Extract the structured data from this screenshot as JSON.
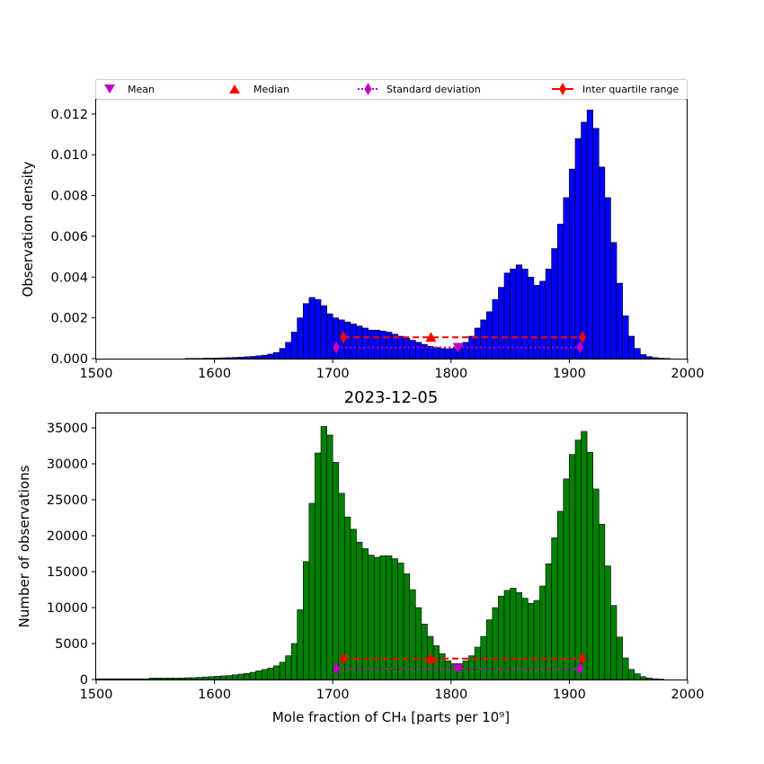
{
  "chart_data": [
    {
      "type": "bar",
      "title": "",
      "xlabel": "",
      "ylabel": "Observation density",
      "xlim": [
        1500,
        2000
      ],
      "ylim": [
        0,
        0.0127
      ],
      "xticks": [
        1500,
        1600,
        1700,
        1800,
        1900,
        2000
      ],
      "xtick_labels": [
        "1500",
        "1600",
        "1700",
        "1800",
        "1900",
        "2000"
      ],
      "yticks": [
        0,
        0.002,
        0.004,
        0.006,
        0.008,
        0.01,
        0.012
      ],
      "ytick_labels": [
        "0.000",
        "0.002",
        "0.004",
        "0.006",
        "0.008",
        "0.010",
        "0.012"
      ],
      "bin_start": 1500,
      "bin_width": 5,
      "color": "#0000ff",
      "values": [
        0,
        0,
        0,
        0,
        0,
        0,
        0,
        0,
        0,
        0,
        0,
        0,
        0,
        0,
        0,
        1e-05,
        1e-05,
        1e-05,
        2e-05,
        2e-05,
        3e-05,
        4e-05,
        5e-05,
        6e-05,
        7e-05,
        9e-05,
        0.00011,
        0.00014,
        0.00017,
        0.00022,
        0.0003,
        0.0005,
        0.0008,
        0.0013,
        0.002,
        0.0027,
        0.003,
        0.0029,
        0.0026,
        0.0022,
        0.002,
        0.0019,
        0.0018,
        0.0017,
        0.0016,
        0.0015,
        0.0014,
        0.0014,
        0.00135,
        0.0013,
        0.0012,
        0.0011,
        0.001,
        0.0009,
        0.0008,
        0.0007,
        0.0006,
        0.00055,
        0.0005,
        0.00048,
        0.0005,
        0.0006,
        0.0008,
        0.0011,
        0.0015,
        0.0019,
        0.0023,
        0.0029,
        0.0035,
        0.0042,
        0.0044,
        0.0046,
        0.0044,
        0.004,
        0.0036,
        0.0038,
        0.0044,
        0.0054,
        0.0066,
        0.0079,
        0.0093,
        0.0108,
        0.0116,
        0.0122,
        0.0113,
        0.0094,
        0.0079,
        0.0057,
        0.0037,
        0.0021,
        0.0011,
        0.0005,
        0.0002,
        0.0001,
        5e-05,
        2e-05,
        1e-05,
        0,
        0,
        0
      ],
      "markers": {
        "mean": {
          "x": 1806,
          "y": 0.00055
        },
        "median": {
          "x": 1783,
          "y": 0.00105
        },
        "std": {
          "x": [
            1703,
            1909
          ],
          "y": 0.00055
        },
        "iqr": {
          "x": [
            1709,
            1911
          ],
          "y": 0.00105
        }
      },
      "legend": {
        "placement": "top",
        "entries": [
          "Mean",
          "Median",
          "Standard deviation",
          "Inter quartile range"
        ]
      }
    },
    {
      "type": "bar",
      "title": "2023-12-05",
      "xlabel": "Mole fraction of CH₄ [parts per 10⁹]",
      "ylabel": "Number of observations",
      "xlim": [
        1500,
        2000
      ],
      "ylim": [
        0,
        37000
      ],
      "xticks": [
        1500,
        1600,
        1700,
        1800,
        1900,
        2000
      ],
      "xtick_labels": [
        "1500",
        "1600",
        "1700",
        "1800",
        "1900",
        "2000"
      ],
      "yticks": [
        0,
        5000,
        10000,
        15000,
        20000,
        25000,
        30000,
        35000
      ],
      "ytick_labels": [
        "0",
        "5000",
        "10000",
        "15000",
        "20000",
        "25000",
        "30000",
        "35000"
      ],
      "bin_start": 1500,
      "bin_width": 5,
      "color": "#008000",
      "values": [
        100,
        100,
        100,
        100,
        100,
        100,
        100,
        100,
        100,
        200,
        200,
        200,
        200,
        200,
        200,
        250,
        250,
        300,
        350,
        400,
        450,
        500,
        550,
        650,
        750,
        850,
        1000,
        1200,
        1400,
        1600,
        1900,
        2400,
        3300,
        5000,
        9700,
        16400,
        24500,
        31500,
        35200,
        34000,
        30200,
        25900,
        22600,
        20900,
        19100,
        18200,
        17300,
        17000,
        17200,
        17200,
        16800,
        16200,
        14700,
        12500,
        10000,
        7700,
        6000,
        4700,
        3600,
        2600,
        2200,
        2200,
        2600,
        3300,
        4500,
        6000,
        8300,
        10000,
        11600,
        12400,
        12700,
        12100,
        11300,
        10600,
        11000,
        13000,
        16100,
        19700,
        23400,
        27900,
        31300,
        33300,
        34500,
        31600,
        26500,
        21600,
        15800,
        10300,
        5900,
        3000,
        1400,
        800,
        400,
        200,
        100,
        50,
        0,
        0,
        0,
        0
      ],
      "markers": {
        "mean": {
          "x": 1806,
          "y": 1500
        },
        "median": {
          "x": 1783,
          "y": 2900
        },
        "std": {
          "x": [
            1703,
            1909
          ],
          "y": 1500
        },
        "iqr": {
          "x": [
            1709,
            1911
          ],
          "y": 2900
        }
      }
    }
  ]
}
